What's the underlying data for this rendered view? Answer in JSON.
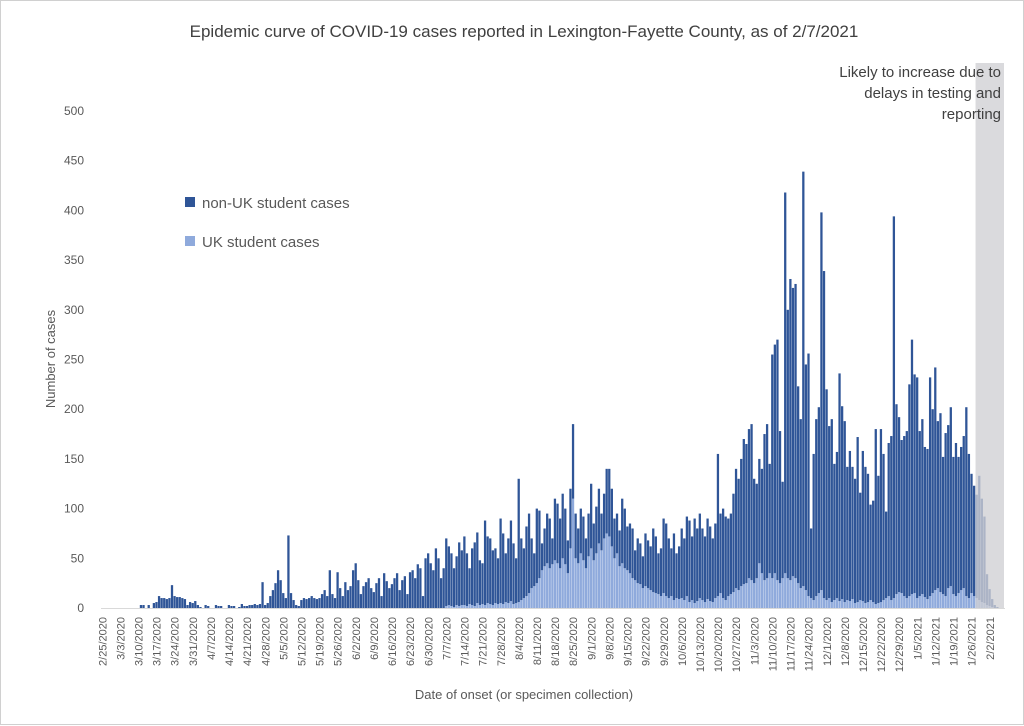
{
  "chart_data": {
    "type": "bar",
    "stacked": true,
    "title": "Epidemic curve of COVID-19 cases reported in Lexington-Fayette County, as of 2/7/2021",
    "xlabel": "Date of onset (or specimen collection)",
    "ylabel": "Number of cases",
    "ylim": [
      0,
      500
    ],
    "yticks": [
      0,
      50,
      100,
      150,
      200,
      250,
      300,
      350,
      400,
      450,
      500
    ],
    "grid": false,
    "legend_position": "upper-left inside",
    "x_start": "2/25/2020",
    "x_end": "2/7/2021",
    "x_interval": "daily",
    "xtick_labels": [
      "2/25/2020",
      "3/3/2020",
      "3/10/2020",
      "3/17/2020",
      "3/24/2020",
      "3/31/2020",
      "4/7/2020",
      "4/14/2020",
      "4/21/2020",
      "4/28/2020",
      "5/5/2020",
      "5/12/2020",
      "5/19/2020",
      "5/26/2020",
      "6/2/2020",
      "6/9/2020",
      "6/16/2020",
      "6/23/2020",
      "6/30/2020",
      "7/7/2020",
      "7/14/2020",
      "7/21/2020",
      "7/28/2020",
      "8/4/2020",
      "8/11/2020",
      "8/18/2020",
      "8/25/2020",
      "9/1/2020",
      "9/8/2020",
      "9/15/2020",
      "9/22/2020",
      "9/29/2020",
      "10/6/2020",
      "10/13/2020",
      "10/20/2020",
      "10/27/2020",
      "11/3/2020",
      "11/10/2020",
      "11/17/2020",
      "11/24/2020",
      "12/1/2020",
      "12/8/2020",
      "12/15/2020",
      "12/22/2020",
      "12/29/2020",
      "1/5/2021",
      "1/12/2021",
      "1/19/2021",
      "1/26/2021",
      "2/2/2021"
    ],
    "annotation": {
      "lines": [
        "Likely to increase due to",
        "delays in testing and",
        "reporting"
      ],
      "shaded_from": "1/28/2021",
      "shaded_to": "2/7/2021"
    },
    "series": [
      {
        "name": "non-UK student cases",
        "color": "#2f5597",
        "values": [
          0,
          0,
          0,
          0,
          0,
          0,
          0,
          0,
          0,
          0,
          0,
          0,
          0,
          0,
          0,
          3,
          3,
          0,
          3,
          0,
          5,
          6,
          12,
          10,
          10,
          9,
          10,
          23,
          12,
          11,
          11,
          10,
          9,
          3,
          6,
          5,
          7,
          3,
          1,
          0,
          3,
          2,
          0,
          0,
          3,
          2,
          2,
          0,
          0,
          3,
          2,
          2,
          0,
          1,
          4,
          2,
          2,
          3,
          3,
          4,
          3,
          4,
          26,
          3,
          5,
          12,
          18,
          25,
          38,
          28,
          15,
          10,
          73,
          15,
          8,
          3,
          2,
          8,
          10,
          9,
          10,
          12,
          10,
          9,
          10,
          14,
          18,
          12,
          38,
          14,
          10,
          36,
          20,
          12,
          26,
          18,
          22,
          38,
          45,
          28,
          14,
          22,
          26,
          30,
          20,
          16,
          25,
          30,
          12,
          35,
          27,
          20,
          24,
          30,
          35,
          18,
          28,
          32,
          14,
          36,
          38,
          30,
          44,
          40,
          12,
          50,
          55,
          45,
          38,
          60,
          50,
          30,
          40,
          68,
          59,
          53,
          39,
          49,
          64,
          55,
          69,
          53,
          36,
          57,
          64,
          71,
          45,
          41,
          85,
          67,
          66,
          55,
          55,
          46,
          85,
          71,
          49,
          65,
          81,
          61,
          45,
          124,
          62,
          50,
          70,
          80,
          50,
          33,
          75,
          68,
          27,
          38,
          50,
          50,
          26,
          62,
          60,
          50,
          65,
          56,
          33,
          60,
          75,
          45,
          35,
          45,
          44,
          30,
          43,
          65,
          37,
          47,
          55,
          37,
          45,
          65,
          68,
          58,
          40,
          40,
          36,
          65,
          60,
          44,
          50,
          50,
          30,
          45,
          41,
          32,
          53,
          48,
          44,
          64,
          57,
          41,
          48,
          75,
          73,
          60,
          48,
          67,
          45,
          53,
          70,
          62,
          80,
          82,
          64,
          85,
          73,
          85,
          72,
          66,
          81,
          75,
          64,
          75,
          143,
          80,
          90,
          84,
          78,
          81,
          99,
          120,
          112,
          128,
          146,
          140,
          150,
          157,
          105,
          95,
          105,
          105,
          147,
          155,
          110,
          225,
          230,
          242,
          153,
          97,
          383,
          270,
          303,
          290,
          296,
          198,
          170,
          417,
          227,
          244,
          70,
          147,
          178,
          187,
          380,
          329,
          212,
          173,
          184,
          137,
          147,
          229,
          194,
          182,
          134,
          151,
          133,
          125,
          166,
          108,
          151,
          137,
          129,
          96,
          102,
          176,
          128,
          174,
          147,
          87,
          154,
          165,
          384,
          191,
          176,
          154,
          161,
          168,
          213,
          256,
          220,
          222,
          166,
          176,
          151,
          151,
          220,
          185,
          224,
          168,
          180,
          138,
          164,
          164,
          180,
          138,
          154,
          137,
          144,
          153,
          190,
          145,
          120,
          111,
          104,
          125,
          104,
          87,
          31,
          17,
          8,
          3,
          1,
          0,
          0
        ]
      },
      {
        "name": "UK student cases",
        "color": "#8faadc",
        "values": [
          0,
          0,
          0,
          0,
          0,
          0,
          0,
          0,
          0,
          0,
          0,
          0,
          0,
          0,
          0,
          0,
          0,
          0,
          0,
          0,
          0,
          0,
          0,
          0,
          0,
          0,
          0,
          0,
          0,
          0,
          0,
          0,
          0,
          0,
          0,
          0,
          0,
          0,
          0,
          0,
          0,
          0,
          0,
          0,
          0,
          0,
          0,
          0,
          0,
          0,
          0,
          0,
          0,
          0,
          0,
          0,
          0,
          0,
          0,
          0,
          0,
          0,
          0,
          0,
          0,
          0,
          0,
          0,
          0,
          0,
          0,
          0,
          0,
          0,
          0,
          0,
          0,
          0,
          0,
          0,
          0,
          0,
          0,
          0,
          0,
          0,
          0,
          0,
          0,
          0,
          0,
          0,
          0,
          0,
          0,
          0,
          0,
          0,
          0,
          0,
          0,
          0,
          0,
          0,
          0,
          0,
          0,
          0,
          0,
          0,
          0,
          0,
          0,
          0,
          0,
          0,
          0,
          0,
          0,
          0,
          0,
          0,
          0,
          0,
          0,
          0,
          0,
          0,
          0,
          0,
          0,
          0,
          0,
          2,
          3,
          2,
          1,
          3,
          2,
          3,
          3,
          2,
          4,
          3,
          2,
          5,
          3,
          4,
          3,
          5,
          4,
          3,
          5,
          4,
          5,
          4,
          6,
          5,
          7,
          4,
          5,
          6,
          8,
          10,
          12,
          15,
          20,
          22,
          25,
          30,
          38,
          42,
          45,
          40,
          44,
          48,
          45,
          40,
          50,
          44,
          35,
          60,
          110,
          50,
          45,
          55,
          48,
          40,
          52,
          60,
          48,
          55,
          65,
          58,
          70,
          75,
          72,
          62,
          50,
          55,
          42,
          45,
          40,
          38,
          35,
          30,
          28,
          25,
          24,
          20,
          22,
          20,
          18,
          16,
          15,
          14,
          12,
          15,
          12,
          10,
          12,
          8,
          10,
          9,
          10,
          8,
          12,
          6,
          8,
          5,
          7,
          10,
          8,
          6,
          9,
          7,
          6,
          10,
          12,
          15,
          10,
          8,
          12,
          14,
          16,
          20,
          18,
          22,
          24,
          25,
          30,
          28,
          25,
          30,
          45,
          35,
          28,
          30,
          35,
          30,
          35,
          28,
          25,
          30,
          35,
          30,
          28,
          32,
          30,
          25,
          20,
          22,
          18,
          12,
          10,
          8,
          12,
          15,
          18,
          10,
          8,
          10,
          6,
          8,
          10,
          7,
          9,
          6,
          8,
          7,
          9,
          5,
          6,
          8,
          7,
          5,
          6,
          8,
          6,
          4,
          5,
          6,
          8,
          10,
          12,
          8,
          10,
          14,
          16,
          15,
          12,
          10,
          12,
          14,
          15,
          10,
          12,
          14,
          11,
          9,
          12,
          15,
          18,
          20,
          16,
          14,
          12,
          20,
          22,
          14,
          12,
          15,
          18,
          20,
          12,
          10,
          15,
          12,
          10,
          8,
          6,
          5,
          3,
          2,
          1,
          0,
          0,
          0,
          0
        ]
      }
    ]
  }
}
